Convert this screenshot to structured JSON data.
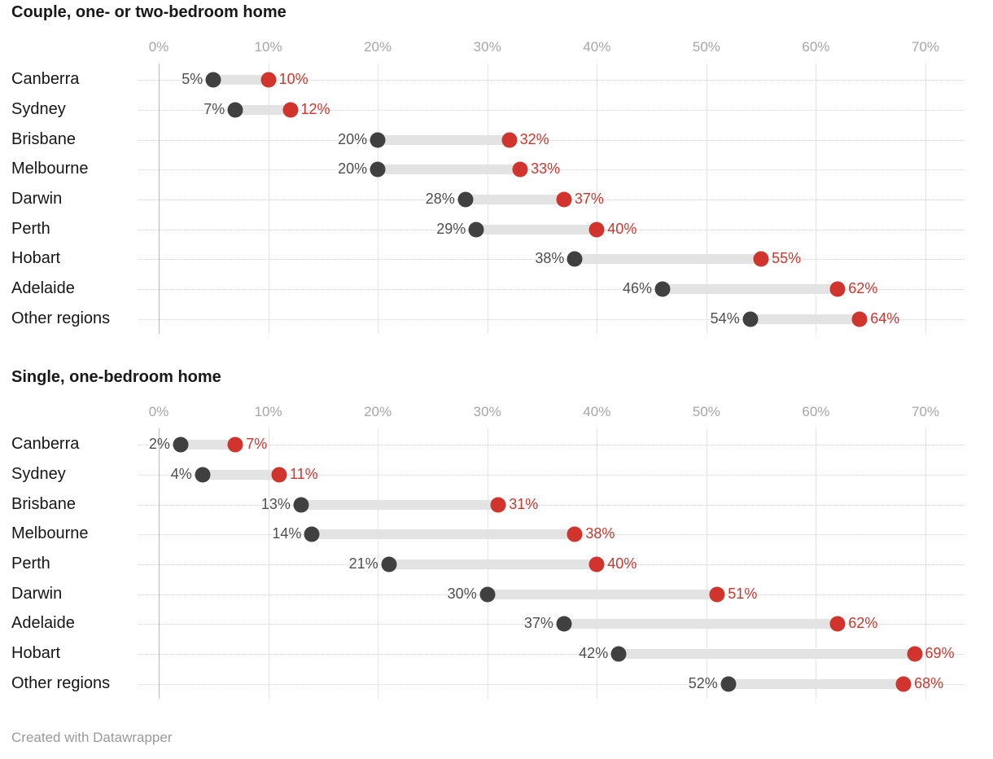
{
  "colors": {
    "start_dot": "#404040",
    "end_dot": "#d0342c",
    "connector_bar": "#e3e3e3",
    "start_value_text": "#4f4f4f",
    "end_value_text": "#d0342c",
    "axis_text": "#a6a6a6",
    "category_text": "#161616"
  },
  "footer": {
    "credit": "Created with Datawrapper"
  },
  "chart_data": [
    {
      "type": "dumbbell",
      "title": "Couple, one- or two-bedroom home",
      "xlabel": "",
      "ylabel": "",
      "axis": {
        "min": 0,
        "max": 70,
        "tick_values": [
          0,
          10,
          20,
          30,
          40,
          50,
          60,
          70
        ],
        "tick_labels": [
          "0%",
          "10%",
          "20%",
          "30%",
          "40%",
          "50%",
          "60%",
          "70%"
        ],
        "grid": true
      },
      "series": [
        {
          "name": "start",
          "color": "#404040"
        },
        {
          "name": "end",
          "color": "#d0342c"
        }
      ],
      "rows": [
        {
          "label": "Canberra",
          "start": 5,
          "end": 10,
          "start_label": "5%",
          "end_label": "10%"
        },
        {
          "label": "Sydney",
          "start": 7,
          "end": 12,
          "start_label": "7%",
          "end_label": "12%"
        },
        {
          "label": "Brisbane",
          "start": 20,
          "end": 32,
          "start_label": "20%",
          "end_label": "32%"
        },
        {
          "label": "Melbourne",
          "start": 20,
          "end": 33,
          "start_label": "20%",
          "end_label": "33%"
        },
        {
          "label": "Darwin",
          "start": 28,
          "end": 37,
          "start_label": "28%",
          "end_label": "37%"
        },
        {
          "label": "Perth",
          "start": 29,
          "end": 40,
          "start_label": "29%",
          "end_label": "40%"
        },
        {
          "label": "Hobart",
          "start": 38,
          "end": 55,
          "start_label": "38%",
          "end_label": "55%"
        },
        {
          "label": "Adelaide",
          "start": 46,
          "end": 62,
          "start_label": "46%",
          "end_label": "62%"
        },
        {
          "label": "Other regions",
          "start": 54,
          "end": 64,
          "start_label": "54%",
          "end_label": "64%"
        }
      ]
    },
    {
      "type": "dumbbell",
      "title": "Single, one-bedroom home",
      "xlabel": "",
      "ylabel": "",
      "axis": {
        "min": 0,
        "max": 70,
        "tick_values": [
          0,
          10,
          20,
          30,
          40,
          50,
          60,
          70
        ],
        "tick_labels": [
          "0%",
          "10%",
          "20%",
          "30%",
          "40%",
          "50%",
          "60%",
          "70%"
        ],
        "grid": true
      },
      "series": [
        {
          "name": "start",
          "color": "#404040"
        },
        {
          "name": "end",
          "color": "#d0342c"
        }
      ],
      "rows": [
        {
          "label": "Canberra",
          "start": 2,
          "end": 7,
          "start_label": "2%",
          "end_label": "7%"
        },
        {
          "label": "Sydney",
          "start": 4,
          "end": 11,
          "start_label": "4%",
          "end_label": "11%"
        },
        {
          "label": "Brisbane",
          "start": 13,
          "end": 31,
          "start_label": "13%",
          "end_label": "31%"
        },
        {
          "label": "Melbourne",
          "start": 14,
          "end": 38,
          "start_label": "14%",
          "end_label": "38%"
        },
        {
          "label": "Perth",
          "start": 21,
          "end": 40,
          "start_label": "21%",
          "end_label": "40%"
        },
        {
          "label": "Darwin",
          "start": 30,
          "end": 51,
          "start_label": "30%",
          "end_label": "51%"
        },
        {
          "label": "Adelaide",
          "start": 37,
          "end": 62,
          "start_label": "37%",
          "end_label": "62%"
        },
        {
          "label": "Hobart",
          "start": 42,
          "end": 69,
          "start_label": "42%",
          "end_label": "69%"
        },
        {
          "label": "Other regions",
          "start": 52,
          "end": 68,
          "start_label": "52%",
          "end_label": "68%"
        }
      ]
    }
  ]
}
